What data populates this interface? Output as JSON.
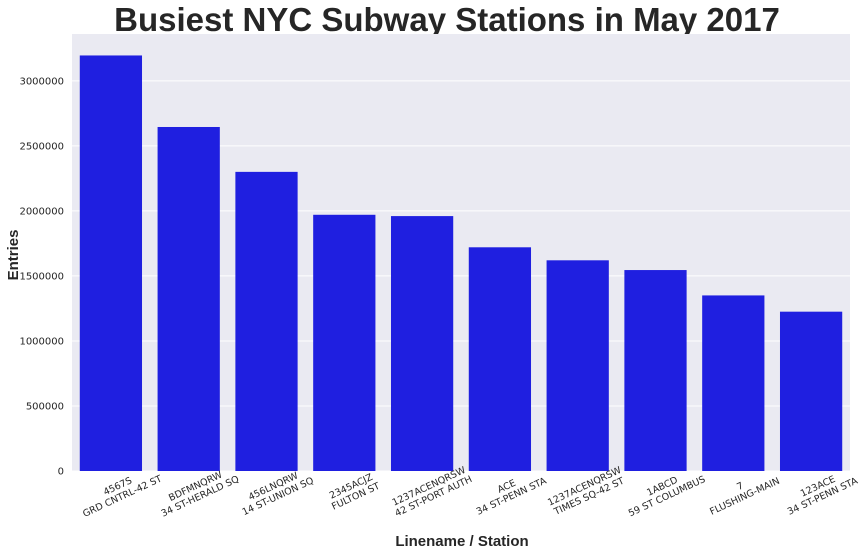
{
  "chart_data": {
    "type": "bar",
    "title": "Busiest NYC Subway Stations in May 2017",
    "xlabel": "Linename / Station",
    "ylabel": "Entries",
    "ylim": [
      0,
      3360000
    ],
    "yticks": [
      0,
      500000,
      1000000,
      1500000,
      2000000,
      2500000,
      3000000
    ],
    "ytick_labels": [
      "0",
      "500000",
      "1000000",
      "1500000",
      "2000000",
      "2500000",
      "3000000"
    ],
    "grid": true,
    "bar_color": "#1f1fe0",
    "background_color": "#eaeaf2",
    "categories": [
      [
        "4567S",
        "GRD CNTRL-42 ST"
      ],
      [
        "BDFMNQRW",
        "34 ST-HERALD SQ"
      ],
      [
        "456LNQRW",
        "14 ST-UNION SQ"
      ],
      [
        "2345ACJZ",
        "FULTON ST"
      ],
      [
        "1237ACENQRSW",
        "42 ST-PORT AUTH"
      ],
      [
        "ACE",
        "34 ST-PENN STA"
      ],
      [
        "1237ACENQRSW",
        "TIMES SQ-42 ST"
      ],
      [
        "1ABCD",
        "59 ST COLUMBUS"
      ],
      [
        "7",
        "FLUSHING-MAIN"
      ],
      [
        "123ACE",
        "34 ST-PENN STA"
      ]
    ],
    "values": [
      3195000,
      2645000,
      2300000,
      1970000,
      1960000,
      1720000,
      1620000,
      1545000,
      1350000,
      1225000
    ]
  }
}
